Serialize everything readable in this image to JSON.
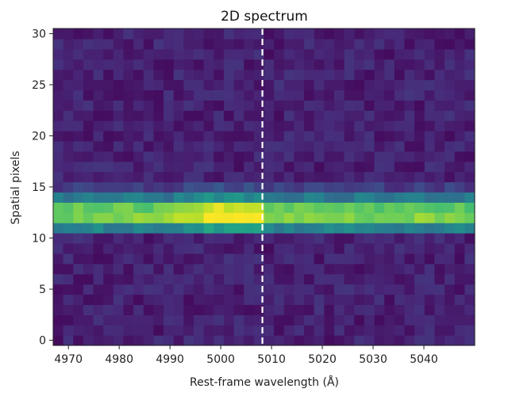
{
  "chart_data": {
    "type": "heatmap",
    "title": "2D spectrum",
    "xlabel": "Rest-frame wavelength (Å)",
    "ylabel": "Spatial pixels",
    "xlim": [
      4967,
      5050
    ],
    "ylim": [
      -0.5,
      30.5
    ],
    "x_ticks": [
      4970,
      4980,
      4990,
      5000,
      5010,
      5020,
      5030,
      5040
    ],
    "y_ticks": [
      0,
      5,
      10,
      15,
      20,
      25,
      30
    ],
    "grid": false,
    "colormap": "viridis",
    "n_columns": 42,
    "n_rows": 31,
    "rows_profile": [
      {
        "y": 11,
        "value": 0.45
      },
      {
        "y": 12,
        "value": 0.8
      },
      {
        "y": 13,
        "value": 0.75
      },
      {
        "y": 14,
        "value": 0.4
      },
      {
        "y": 15,
        "value": 0.18
      }
    ],
    "peak_wavelength_range": [
      4996,
      5008
    ],
    "annotations": [
      {
        "type": "vertical-dashed-line",
        "x": 5008.2,
        "color": "#ffffff"
      }
    ]
  }
}
